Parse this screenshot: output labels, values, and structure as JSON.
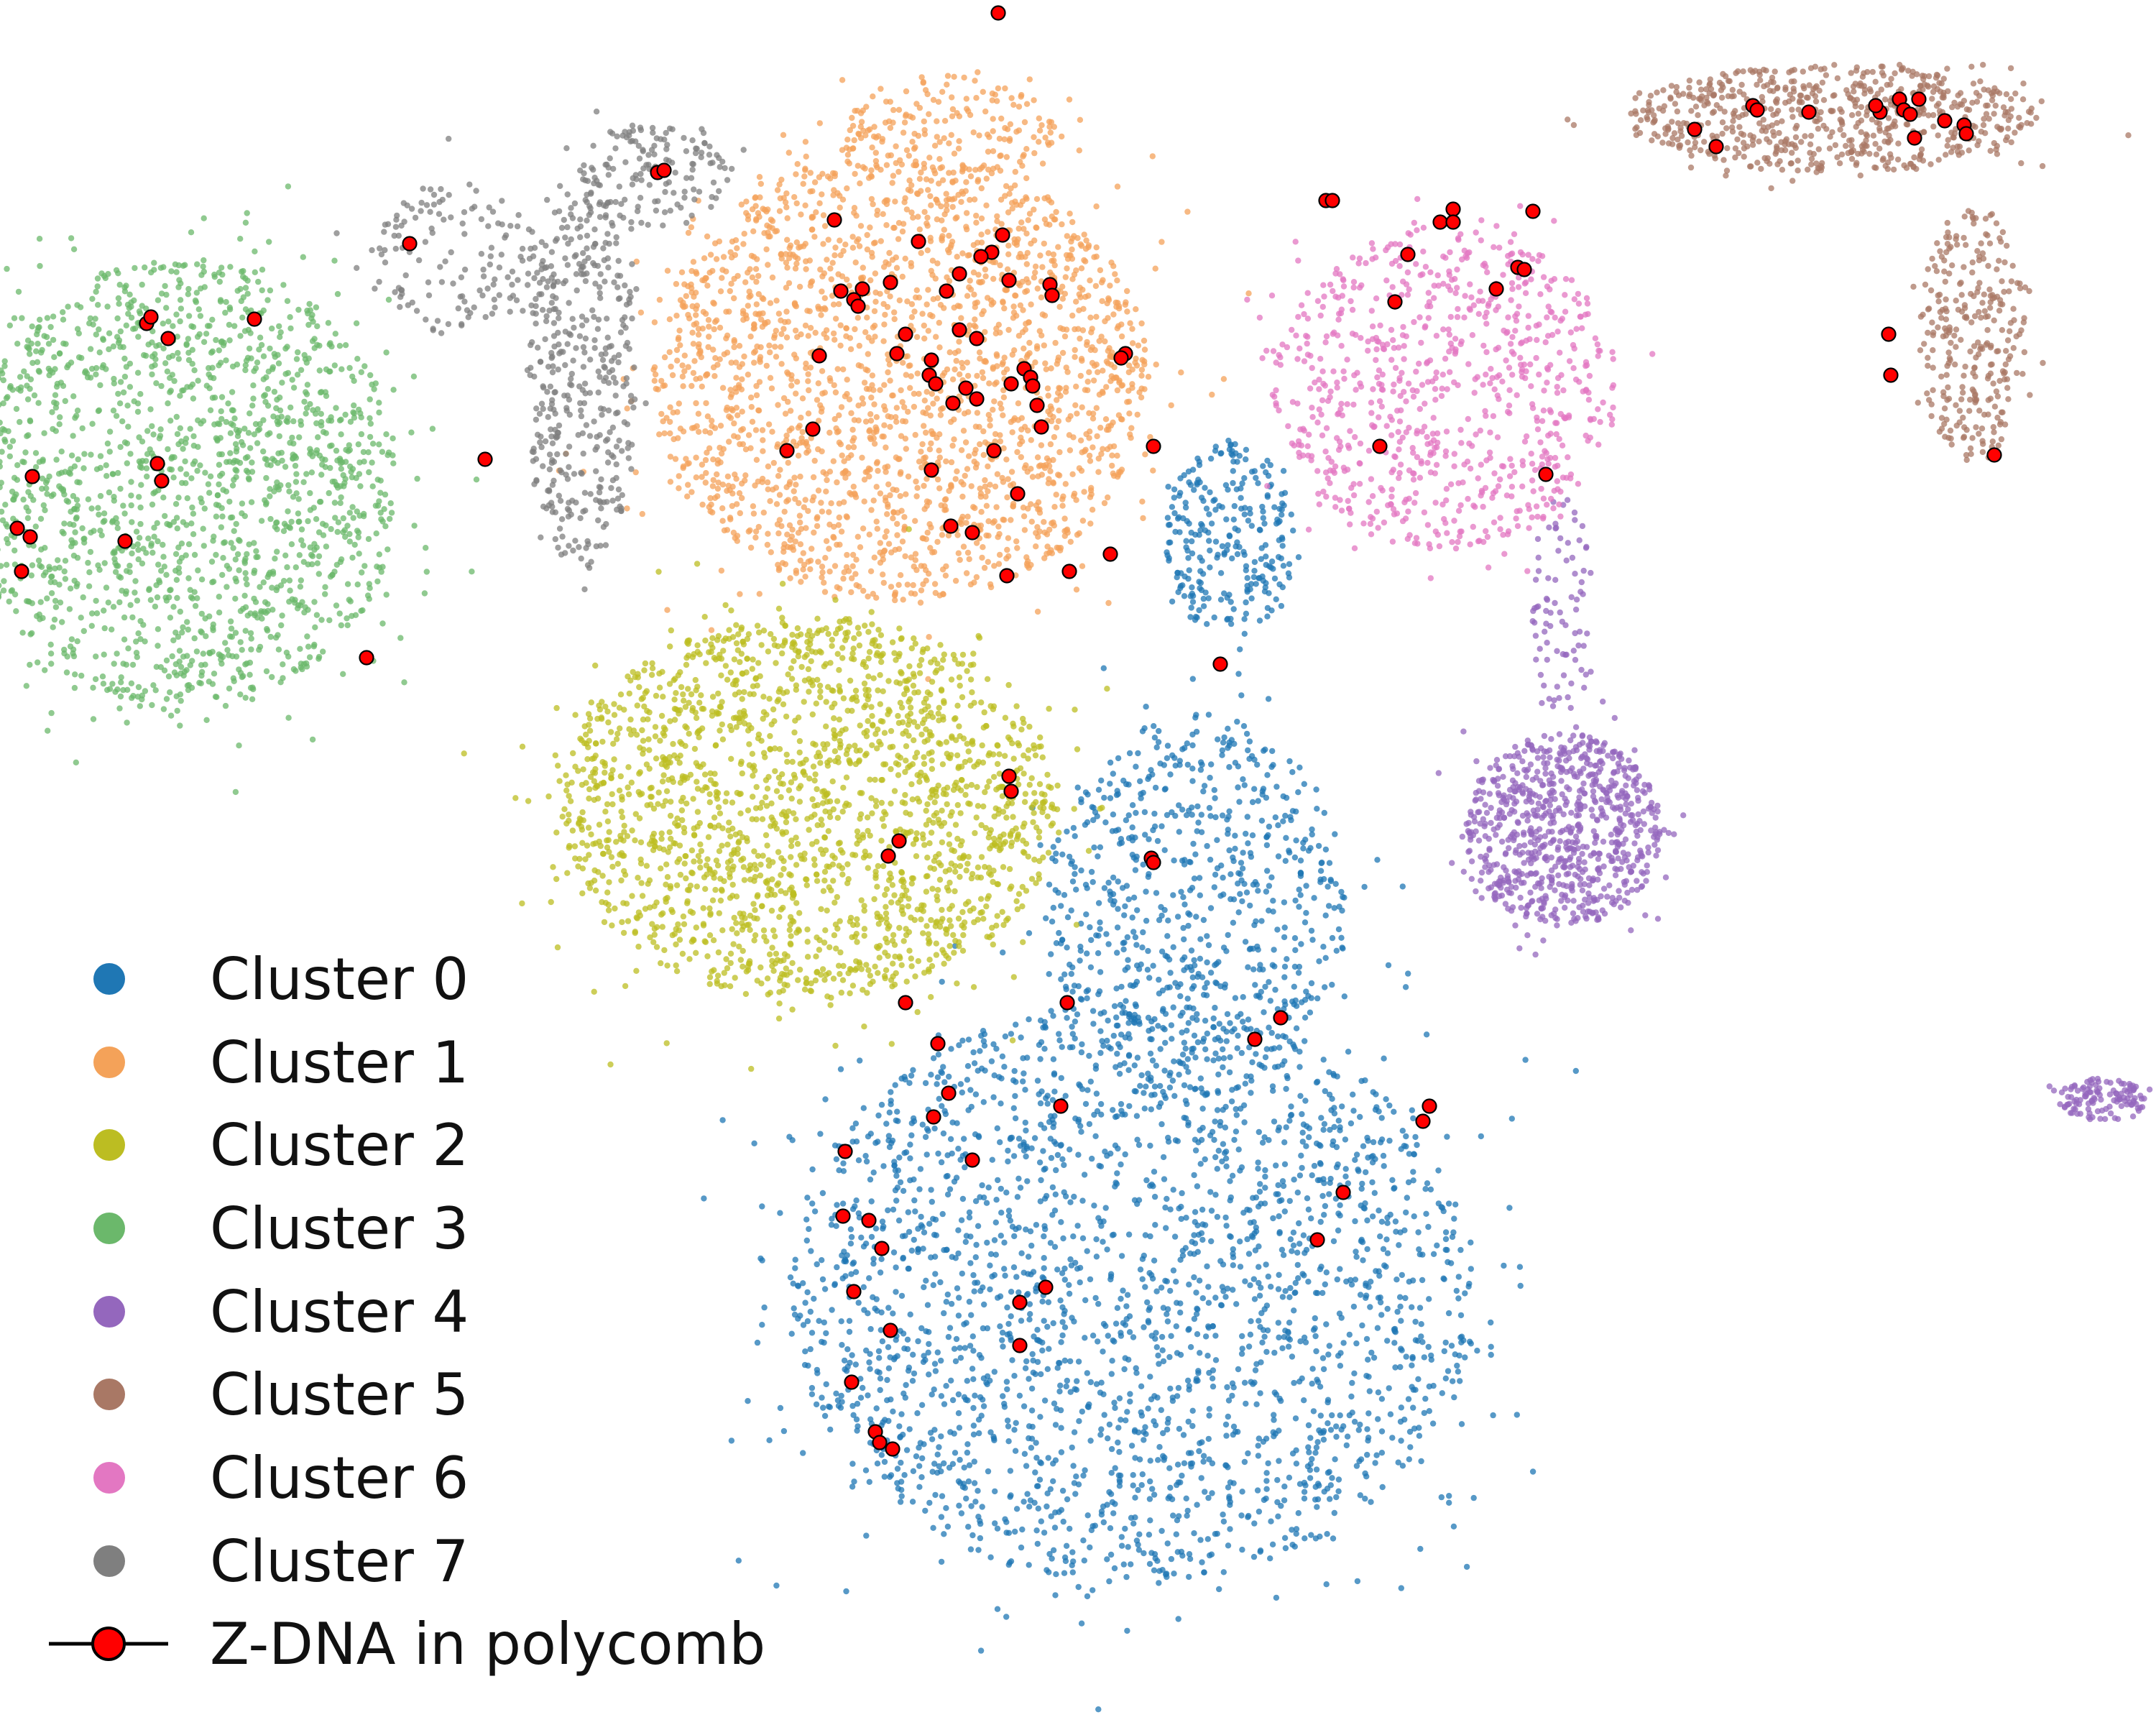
{
  "chart_data": {
    "type": "scatter",
    "title": "",
    "xlabel": "",
    "ylabel": "",
    "axes_visible": false,
    "grid": false,
    "legend_position": "bottom-left",
    "xlim": [
      0,
      100
    ],
    "ylim": [
      0,
      80
    ],
    "series": [
      {
        "name": "Cluster 0",
        "color": "#1f77b4",
        "count": 3300,
        "regions": [
          {
            "cx": 52.5,
            "cy": 20.0,
            "rx": 16.0,
            "ry": 13.5,
            "w": 0.7
          },
          {
            "cx": 55.5,
            "cy": 38.0,
            "rx": 7.0,
            "ry": 9.0,
            "w": 0.22
          },
          {
            "cx": 57.0,
            "cy": 55.0,
            "rx": 3.0,
            "ry": 4.5,
            "w": 0.08
          }
        ]
      },
      {
        "name": "Cluster 1",
        "color": "#f4a259",
        "count": 2400,
        "regions": [
          {
            "cx": 41.8,
            "cy": 62.5,
            "rx": 11.5,
            "ry": 10.5,
            "w": 0.88
          },
          {
            "cx": 44.0,
            "cy": 74.0,
            "rx": 5.0,
            "ry": 2.5,
            "w": 0.07
          },
          {
            "cx": 45.5,
            "cy": 88.0,
            "rx": 0.8,
            "ry": 4.0,
            "w": 0.05
          }
        ]
      },
      {
        "name": "Cluster 2",
        "color": "#bcbd22",
        "count": 2000,
        "regions": [
          {
            "cx": 37.5,
            "cy": 42.5,
            "rx": 11.5,
            "ry": 9.0,
            "w": 1.0
          }
        ]
      },
      {
        "name": "Cluster 3",
        "color": "#6bb86b",
        "count": 1700,
        "regions": [
          {
            "cx": 8.5,
            "cy": 57.5,
            "rx": 10.0,
            "ry": 10.5,
            "w": 1.0
          }
        ]
      },
      {
        "name": "Cluster 4",
        "color": "#9467bd",
        "count": 1000,
        "regions": [
          {
            "cx": 72.5,
            "cy": 41.5,
            "rx": 4.5,
            "ry": 4.5,
            "w": 0.8
          },
          {
            "cx": 72.5,
            "cy": 52.0,
            "rx": 1.5,
            "ry": 5.0,
            "w": 0.08
          },
          {
            "cx": 97.5,
            "cy": 29.0,
            "rx": 2.0,
            "ry": 1.0,
            "w": 0.12
          }
        ]
      },
      {
        "name": "Cluster 5",
        "color": "#a97865",
        "count": 950,
        "regions": [
          {
            "cx": 85.0,
            "cy": 74.5,
            "rx": 9.5,
            "ry": 2.5,
            "w": 0.7
          },
          {
            "cx": 91.5,
            "cy": 64.5,
            "rx": 2.5,
            "ry": 6.0,
            "w": 0.3
          }
        ]
      },
      {
        "name": "Cluster 6",
        "color": "#e377c2",
        "count": 800,
        "regions": [
          {
            "cx": 67.0,
            "cy": 62.0,
            "rx": 8.0,
            "ry": 7.5,
            "w": 1.0
          }
        ]
      },
      {
        "name": "Cluster 7",
        "color": "#7f7f7f",
        "count": 700,
        "regions": [
          {
            "cx": 27.0,
            "cy": 62.5,
            "rx": 2.5,
            "ry": 9.0,
            "w": 0.6
          },
          {
            "cx": 21.0,
            "cy": 68.0,
            "rx": 4.0,
            "ry": 3.5,
            "w": 0.2
          },
          {
            "cx": 30.5,
            "cy": 72.0,
            "rx": 3.5,
            "ry": 2.5,
            "w": 0.2
          }
        ]
      }
    ],
    "highlight": {
      "name": "Z-DNA in polycomb",
      "color": "#ff0000",
      "edge_color": "#000000",
      "points": [
        [
          46.3,
          79.4
        ],
        [
          30.5,
          72.0
        ],
        [
          30.8,
          72.1
        ],
        [
          19.0,
          68.7
        ],
        [
          22.5,
          58.7
        ],
        [
          6.8,
          65.0
        ],
        [
          7.0,
          65.3
        ],
        [
          7.8,
          64.3
        ],
        [
          11.8,
          65.2
        ],
        [
          7.3,
          58.5
        ],
        [
          7.5,
          57.7
        ],
        [
          1.5,
          57.9
        ],
        [
          0.8,
          55.5
        ],
        [
          1.4,
          55.1
        ],
        [
          5.8,
          54.9
        ],
        [
          1.0,
          53.5
        ],
        [
          17.0,
          49.5
        ],
        [
          38.7,
          69.8
        ],
        [
          42.6,
          68.8
        ],
        [
          46.5,
          69.1
        ],
        [
          46.0,
          68.3
        ],
        [
          45.5,
          68.1
        ],
        [
          44.5,
          67.3
        ],
        [
          46.8,
          67.0
        ],
        [
          39.0,
          66.5
        ],
        [
          40.0,
          66.6
        ],
        [
          39.6,
          66.1
        ],
        [
          41.3,
          66.9
        ],
        [
          43.9,
          66.5
        ],
        [
          48.7,
          66.8
        ],
        [
          39.8,
          65.8
        ],
        [
          48.8,
          66.3
        ],
        [
          42.0,
          64.5
        ],
        [
          44.5,
          64.7
        ],
        [
          45.3,
          64.3
        ],
        [
          52.2,
          63.6
        ],
        [
          52.0,
          63.4
        ],
        [
          41.6,
          63.6
        ],
        [
          43.2,
          63.3
        ],
        [
          43.1,
          62.6
        ],
        [
          47.5,
          62.9
        ],
        [
          47.8,
          62.5
        ],
        [
          38.0,
          63.5
        ],
        [
          43.4,
          62.2
        ],
        [
          44.8,
          62.0
        ],
        [
          45.3,
          61.5
        ],
        [
          46.9,
          62.2
        ],
        [
          47.9,
          62.1
        ],
        [
          48.1,
          61.2
        ],
        [
          44.2,
          61.3
        ],
        [
          48.3,
          60.2
        ],
        [
          37.7,
          60.1
        ],
        [
          36.5,
          59.1
        ],
        [
          46.1,
          59.1
        ],
        [
          53.5,
          59.3
        ],
        [
          43.2,
          58.2
        ],
        [
          47.2,
          57.1
        ],
        [
          44.1,
          55.6
        ],
        [
          45.1,
          55.3
        ],
        [
          51.5,
          54.3
        ],
        [
          46.7,
          53.3
        ],
        [
          49.6,
          53.5
        ],
        [
          61.5,
          70.7
        ],
        [
          61.8,
          70.7
        ],
        [
          67.4,
          70.3
        ],
        [
          71.1,
          70.2
        ],
        [
          66.8,
          69.7
        ],
        [
          67.4,
          69.7
        ],
        [
          65.3,
          68.2
        ],
        [
          70.4,
          67.6
        ],
        [
          70.7,
          67.5
        ],
        [
          69.4,
          66.6
        ],
        [
          64.7,
          66.0
        ],
        [
          64.0,
          59.3
        ],
        [
          71.7,
          58.0
        ],
        [
          81.3,
          75.1
        ],
        [
          81.5,
          74.9
        ],
        [
          83.9,
          74.8
        ],
        [
          87.2,
          74.8
        ],
        [
          87.0,
          75.1
        ],
        [
          88.1,
          75.4
        ],
        [
          89.0,
          75.4
        ],
        [
          88.3,
          74.9
        ],
        [
          88.6,
          74.7
        ],
        [
          90.2,
          74.4
        ],
        [
          91.1,
          74.2
        ],
        [
          91.2,
          73.8
        ],
        [
          78.6,
          74.0
        ],
        [
          79.6,
          73.2
        ],
        [
          88.8,
          73.6
        ],
        [
          87.6,
          64.5
        ],
        [
          87.7,
          62.6
        ],
        [
          92.5,
          58.9
        ],
        [
          56.6,
          49.2
        ],
        [
          46.8,
          44.0
        ],
        [
          46.9,
          43.3
        ],
        [
          41.7,
          41.0
        ],
        [
          41.2,
          40.3
        ],
        [
          53.4,
          40.2
        ],
        [
          53.5,
          40.0
        ],
        [
          42.0,
          33.5
        ],
        [
          49.5,
          33.5
        ],
        [
          59.4,
          32.8
        ],
        [
          58.2,
          31.8
        ],
        [
          43.5,
          31.6
        ],
        [
          44.0,
          29.3
        ],
        [
          49.2,
          28.7
        ],
        [
          66.3,
          28.7
        ],
        [
          43.3,
          28.2
        ],
        [
          66.0,
          28.0
        ],
        [
          39.2,
          26.6
        ],
        [
          45.1,
          26.2
        ],
        [
          62.3,
          24.7
        ],
        [
          39.1,
          23.6
        ],
        [
          40.3,
          23.4
        ],
        [
          61.1,
          22.5
        ],
        [
          40.9,
          22.1
        ],
        [
          39.6,
          20.1
        ],
        [
          48.5,
          20.3
        ],
        [
          47.3,
          19.6
        ],
        [
          41.3,
          18.3
        ],
        [
          47.3,
          17.6
        ],
        [
          39.5,
          15.9
        ],
        [
          40.6,
          13.6
        ],
        [
          40.8,
          13.1
        ],
        [
          41.4,
          12.8
        ]
      ]
    }
  },
  "legend": {
    "items": [
      {
        "label": "Cluster 0",
        "color": "#1f77b4"
      },
      {
        "label": "Cluster 1",
        "color": "#f4a259"
      },
      {
        "label": "Cluster 2",
        "color": "#bcbd22"
      },
      {
        "label": "Cluster 3",
        "color": "#6bb86b"
      },
      {
        "label": "Cluster 4",
        "color": "#9467bd"
      },
      {
        "label": "Cluster 5",
        "color": "#a97865"
      },
      {
        "label": "Cluster 6",
        "color": "#e377c2"
      },
      {
        "label": "Cluster 7",
        "color": "#7f7f7f"
      }
    ],
    "highlight_label": "Z-DNA in polycomb"
  }
}
